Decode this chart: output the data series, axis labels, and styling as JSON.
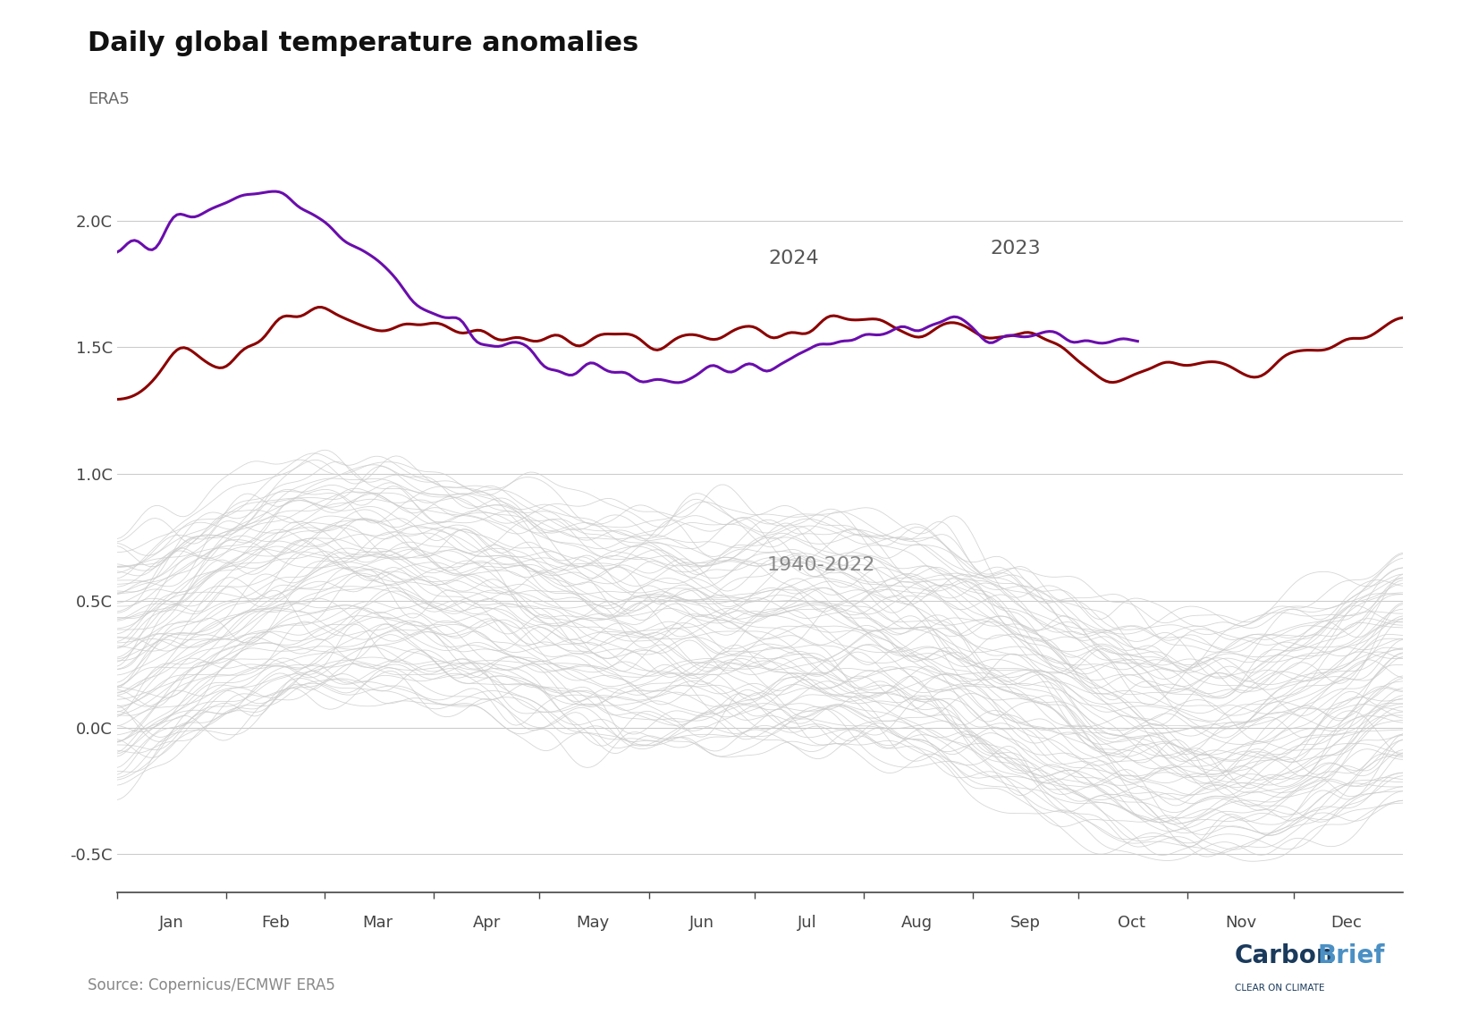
{
  "title": "Daily global temperature anomalies",
  "subtitle": "ERA5",
  "source": "Source: Copernicus/ECMWF ERA5",
  "yticks": [
    -0.5,
    0.0,
    0.5,
    1.0,
    1.5,
    2.0
  ],
  "ytick_labels": [
    "-0.5C",
    "0.0C",
    "0.5C",
    "1.0C",
    "1.5C",
    "2.0C"
  ],
  "ylim": [
    -0.65,
    2.15
  ],
  "months": [
    "Jan",
    "Feb",
    "Mar",
    "Apr",
    "May",
    "Jun",
    "Jul",
    "Aug",
    "Sep",
    "Oct",
    "Nov",
    "Dec"
  ],
  "color_2023": "#8B0000",
  "color_2024": "#6A0DAD",
  "color_background_lines": "#cccccc",
  "label_2023": "2023",
  "label_2024": "2024",
  "label_historical": "1940-2022",
  "n_days": 365,
  "background_color": "#ffffff",
  "title_fontsize": 22,
  "subtitle_fontsize": 13,
  "tick_fontsize": 13,
  "label_fontsize": 16,
  "source_fontsize": 12,
  "carbonbrief_dark": "#1a3a5c",
  "carbonbrief_blue": "#4a90c4"
}
